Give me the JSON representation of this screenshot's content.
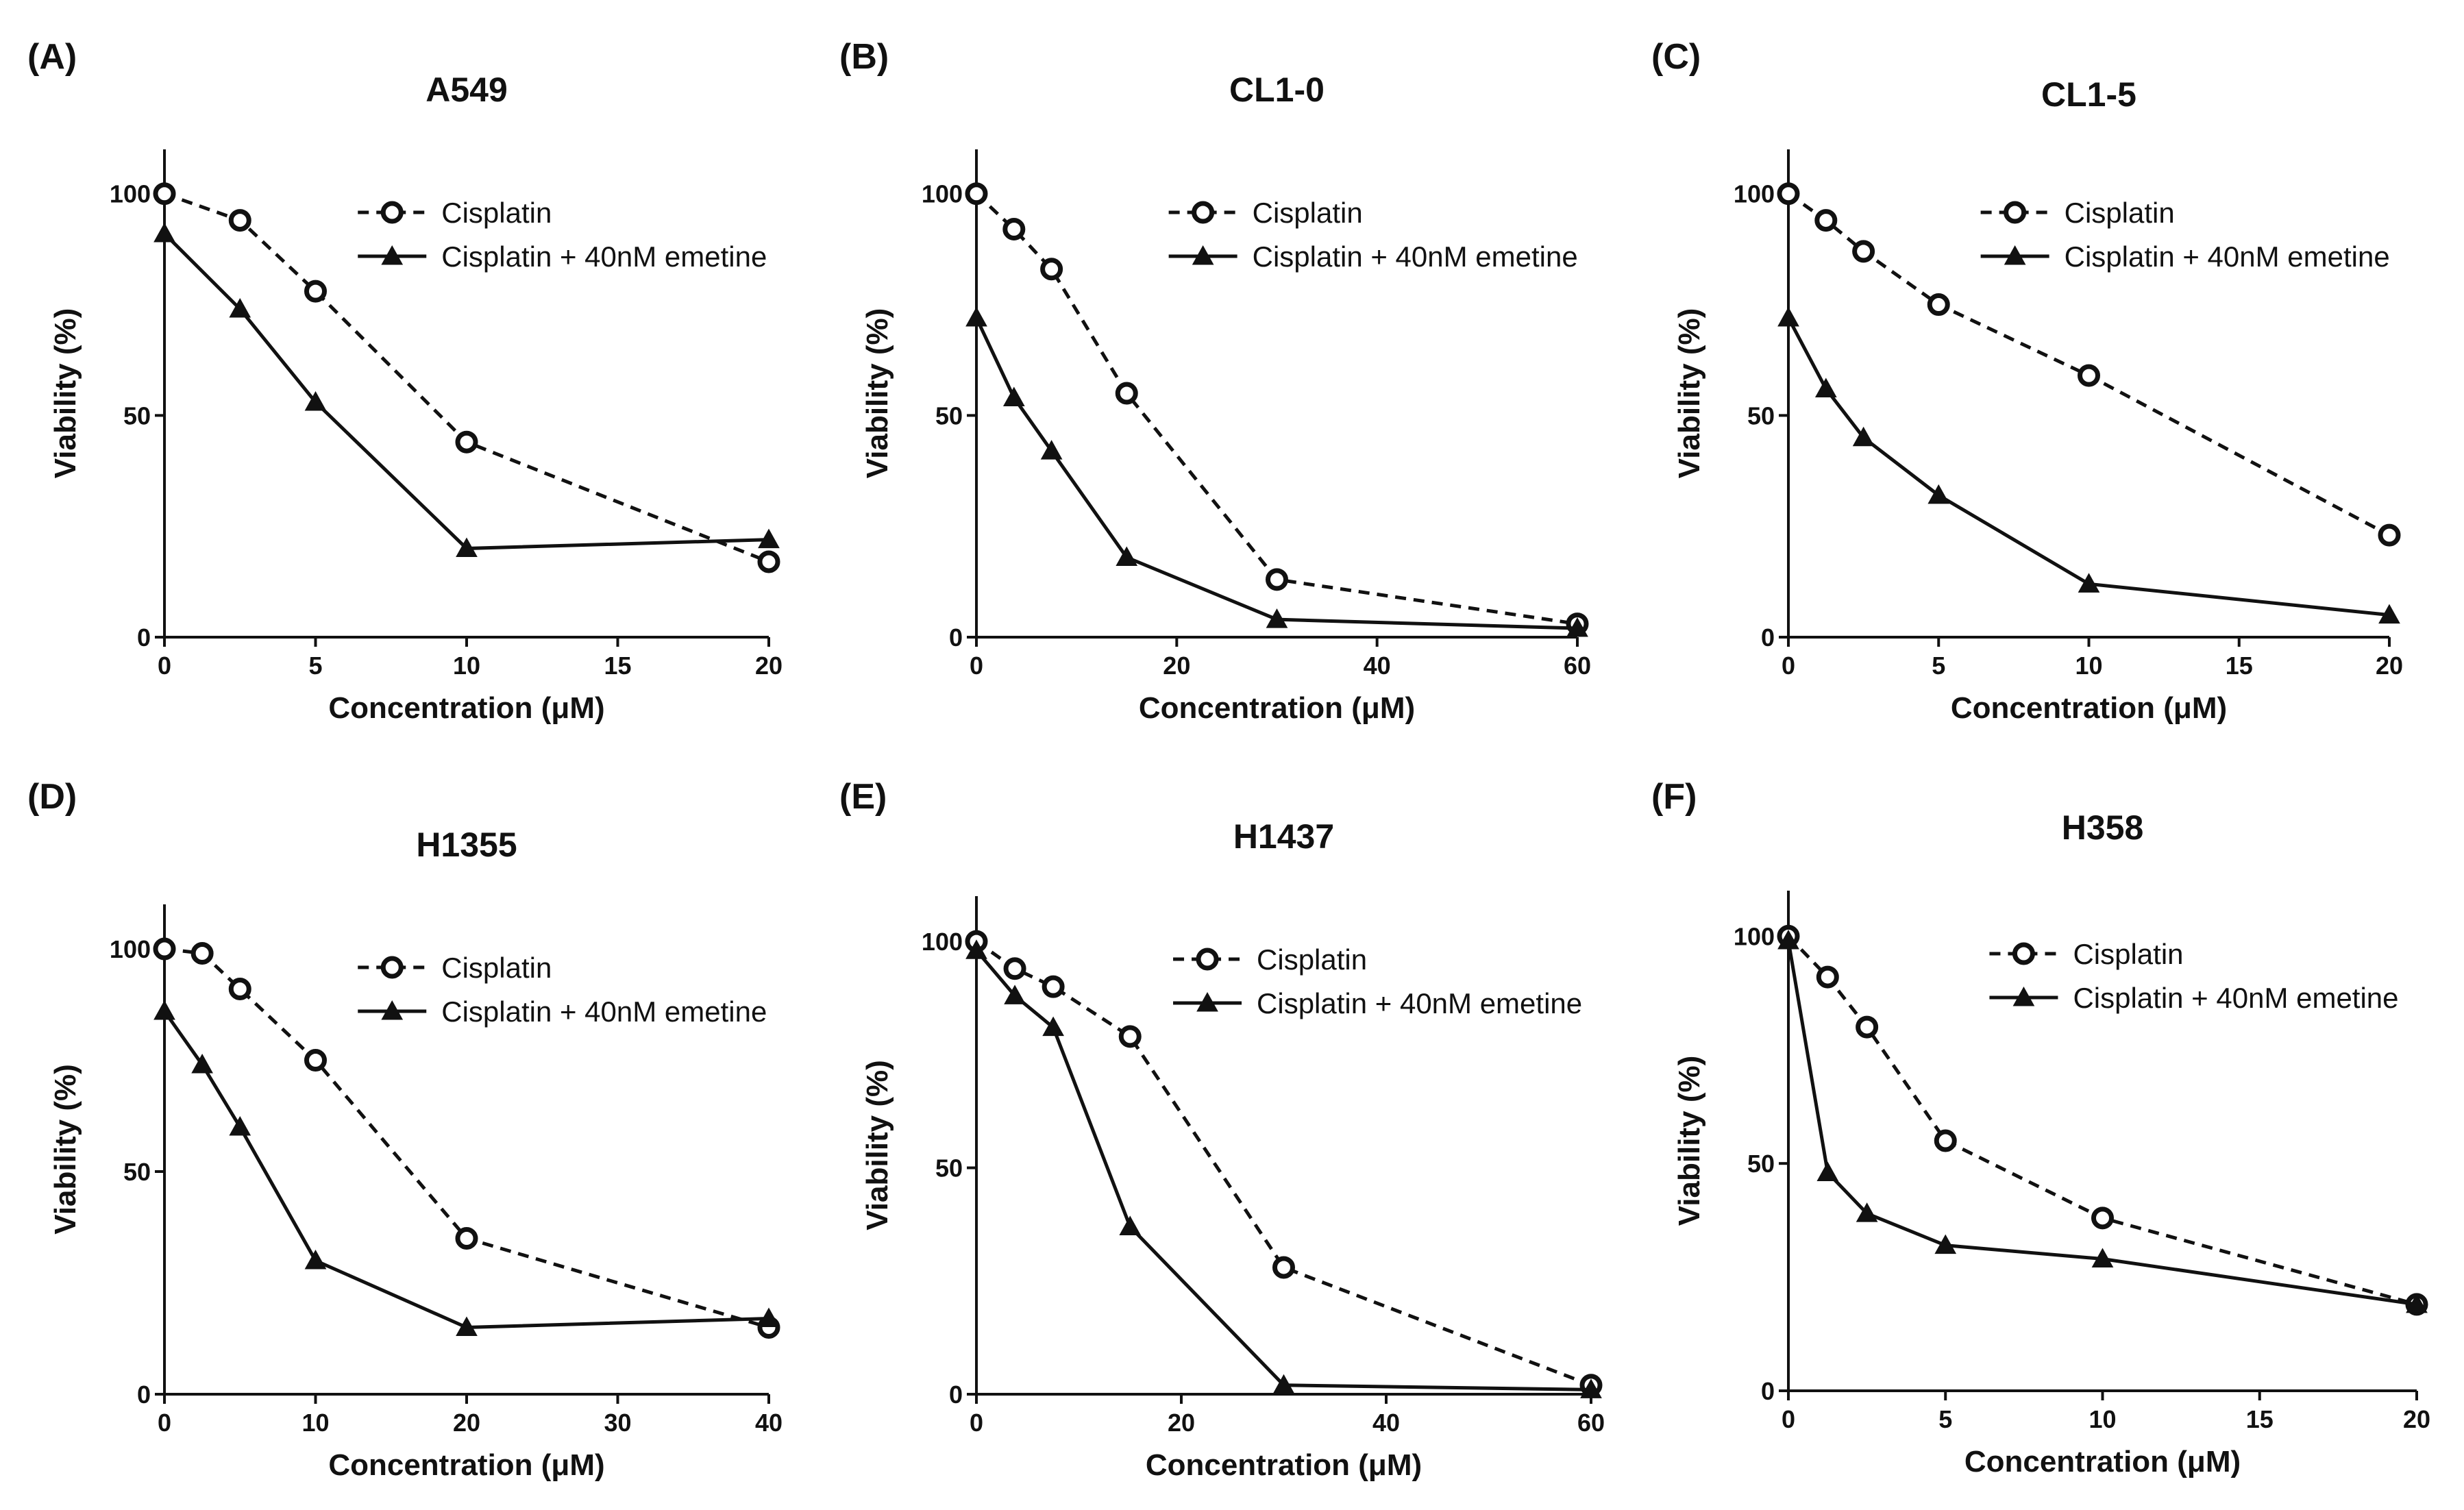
{
  "chart_data": [
    {
      "type": "line",
      "panel": "(A)",
      "title": "A549",
      "xlabel": "Concentration (μM)",
      "ylabel": "Viability (%)",
      "xlim": [
        0,
        20
      ],
      "ylim": [
        0,
        110
      ],
      "xticks": [
        0,
        5,
        10,
        15,
        20
      ],
      "yticks": [
        0,
        50,
        100
      ],
      "legend_position": "top-right",
      "series": [
        {
          "name": "Cisplatin",
          "marker": "circle",
          "style": "dashed",
          "x": [
            0,
            2.5,
            5,
            10,
            20
          ],
          "values": [
            100,
            94,
            78,
            44,
            17
          ]
        },
        {
          "name": "Cisplatin + 40nM emetine",
          "marker": "triangle",
          "style": "solid",
          "x": [
            0,
            2.5,
            5,
            10,
            20
          ],
          "values": [
            91,
            74,
            53,
            20,
            22
          ]
        }
      ]
    },
    {
      "type": "line",
      "panel": "(B)",
      "title": "CL1-0",
      "xlabel": "Concentration (μM)",
      "ylabel": "Viability (%)",
      "xlim": [
        0,
        60
      ],
      "ylim": [
        0,
        110
      ],
      "xticks": [
        0,
        20,
        40,
        60
      ],
      "yticks": [
        0,
        50,
        100
      ],
      "legend_position": "top-right",
      "series": [
        {
          "name": "Cisplatin",
          "marker": "circle",
          "style": "dashed",
          "x": [
            0,
            3.75,
            7.5,
            15,
            30,
            60
          ],
          "values": [
            100,
            92,
            83,
            55,
            13,
            3
          ]
        },
        {
          "name": "Cisplatin + 40nM emetine",
          "marker": "triangle",
          "style": "solid",
          "x": [
            0,
            3.75,
            7.5,
            15,
            30,
            60
          ],
          "values": [
            72,
            54,
            42,
            18,
            4,
            2
          ]
        }
      ]
    },
    {
      "type": "line",
      "panel": "(C)",
      "title": "CL1-5",
      "xlabel": "Concentration (μM)",
      "ylabel": "Viability (%)",
      "xlim": [
        0,
        20
      ],
      "ylim": [
        0,
        110
      ],
      "xticks": [
        0,
        5,
        10,
        15,
        20
      ],
      "yticks": [
        0,
        50,
        100
      ],
      "legend_position": "top-right",
      "series": [
        {
          "name": "Cisplatin",
          "marker": "circle",
          "style": "dashed",
          "x": [
            0,
            1.25,
            2.5,
            5,
            10,
            20
          ],
          "values": [
            100,
            94,
            87,
            75,
            59,
            23
          ]
        },
        {
          "name": "Cisplatin + 40nM emetine",
          "marker": "triangle",
          "style": "solid",
          "x": [
            0,
            1.25,
            2.5,
            5,
            10,
            20
          ],
          "values": [
            72,
            56,
            45,
            32,
            12,
            5
          ]
        }
      ]
    },
    {
      "type": "line",
      "panel": "(D)",
      "title": "H1355",
      "xlabel": "Concentration (μM)",
      "ylabel": "Viability (%)",
      "xlim": [
        0,
        40
      ],
      "ylim": [
        0,
        110
      ],
      "xticks": [
        0,
        10,
        20,
        30,
        40
      ],
      "yticks": [
        0,
        50,
        100
      ],
      "legend_position": "top-right",
      "series": [
        {
          "name": "Cisplatin",
          "marker": "circle",
          "style": "dashed",
          "x": [
            0,
            2.5,
            5,
            10,
            20,
            40
          ],
          "values": [
            100,
            99,
            91,
            75,
            35,
            15
          ]
        },
        {
          "name": "Cisplatin + 40nM emetine",
          "marker": "triangle",
          "style": "solid",
          "x": [
            0,
            2.5,
            5,
            10,
            20,
            40
          ],
          "values": [
            86,
            74,
            60,
            30,
            15,
            17
          ]
        }
      ]
    },
    {
      "type": "line",
      "panel": "(E)",
      "title": "H1437",
      "xlabel": "Concentration (μM)",
      "ylabel": "Viability (%)",
      "xlim": [
        0,
        60
      ],
      "ylim": [
        0,
        110
      ],
      "xticks": [
        0,
        20,
        40,
        60
      ],
      "yticks": [
        0,
        50,
        100
      ],
      "legend_position": "top-right",
      "series": [
        {
          "name": "Cisplatin",
          "marker": "circle",
          "style": "dashed",
          "x": [
            0,
            3.75,
            7.5,
            15,
            30,
            60
          ],
          "values": [
            100,
            94,
            90,
            79,
            28,
            2
          ]
        },
        {
          "name": "Cisplatin + 40nM emetine",
          "marker": "triangle",
          "style": "solid",
          "x": [
            0,
            3.75,
            7.5,
            15,
            30,
            60
          ],
          "values": [
            98,
            88,
            81,
            37,
            2,
            1
          ]
        }
      ]
    },
    {
      "type": "line",
      "panel": "(F)",
      "title": "H358",
      "xlabel": "Concentration (μM)",
      "ylabel": "Viability (%)",
      "xlim": [
        0,
        20
      ],
      "ylim": [
        0,
        110
      ],
      "xticks": [
        0,
        5,
        10,
        15,
        20
      ],
      "yticks": [
        0,
        50,
        100
      ],
      "legend_position": "top-right",
      "series": [
        {
          "name": "Cisplatin",
          "marker": "circle",
          "style": "dashed",
          "x": [
            0,
            1.25,
            2.5,
            5,
            10,
            20
          ],
          "values": [
            100,
            91,
            80,
            55,
            38,
            19
          ]
        },
        {
          "name": "Cisplatin + 40nM emetine",
          "marker": "triangle",
          "style": "solid",
          "x": [
            0,
            1.25,
            2.5,
            5,
            10,
            20
          ],
          "values": [
            99,
            48,
            39,
            32,
            29,
            19
          ]
        }
      ]
    }
  ]
}
